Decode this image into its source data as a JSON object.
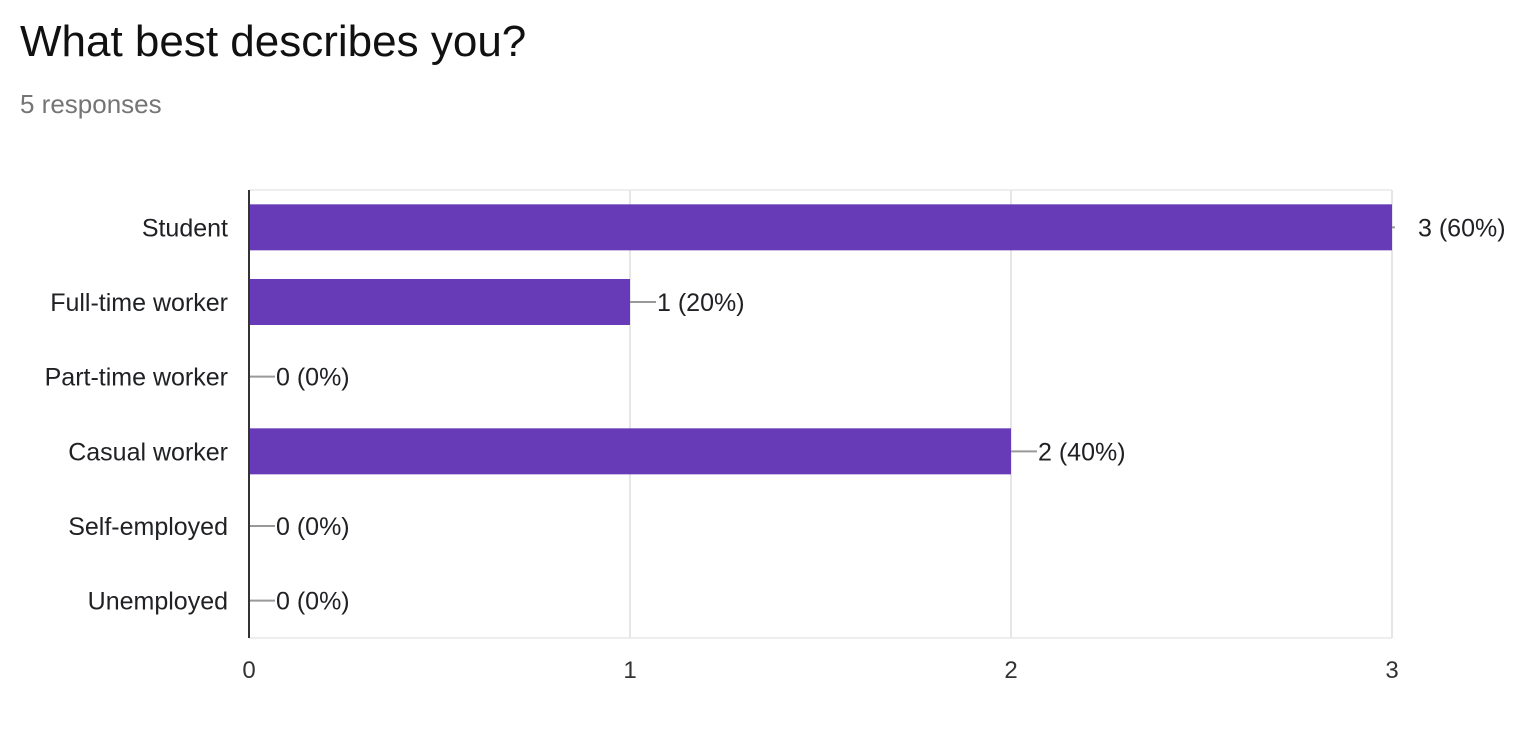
{
  "question": {
    "title": "What best describes you?",
    "responses_label": "5 responses"
  },
  "chart_data": {
    "type": "bar",
    "orientation": "horizontal",
    "categories": [
      "Student",
      "Full-time worker",
      "Part-time worker",
      "Casual worker",
      "Self-employed",
      "Unemployed"
    ],
    "values": [
      3,
      1,
      0,
      2,
      0,
      0
    ],
    "data_labels": [
      "3 (60%)",
      "1 (20%)",
      "0 (0%)",
      "2 (40%)",
      "0 (0%)",
      "0 (0%)"
    ],
    "xlim": [
      0,
      3
    ],
    "x_ticks": [
      "0",
      "1",
      "2",
      "3"
    ],
    "grid": true,
    "bar_color": "#673ab7",
    "title": "",
    "xlabel": "",
    "ylabel": ""
  }
}
